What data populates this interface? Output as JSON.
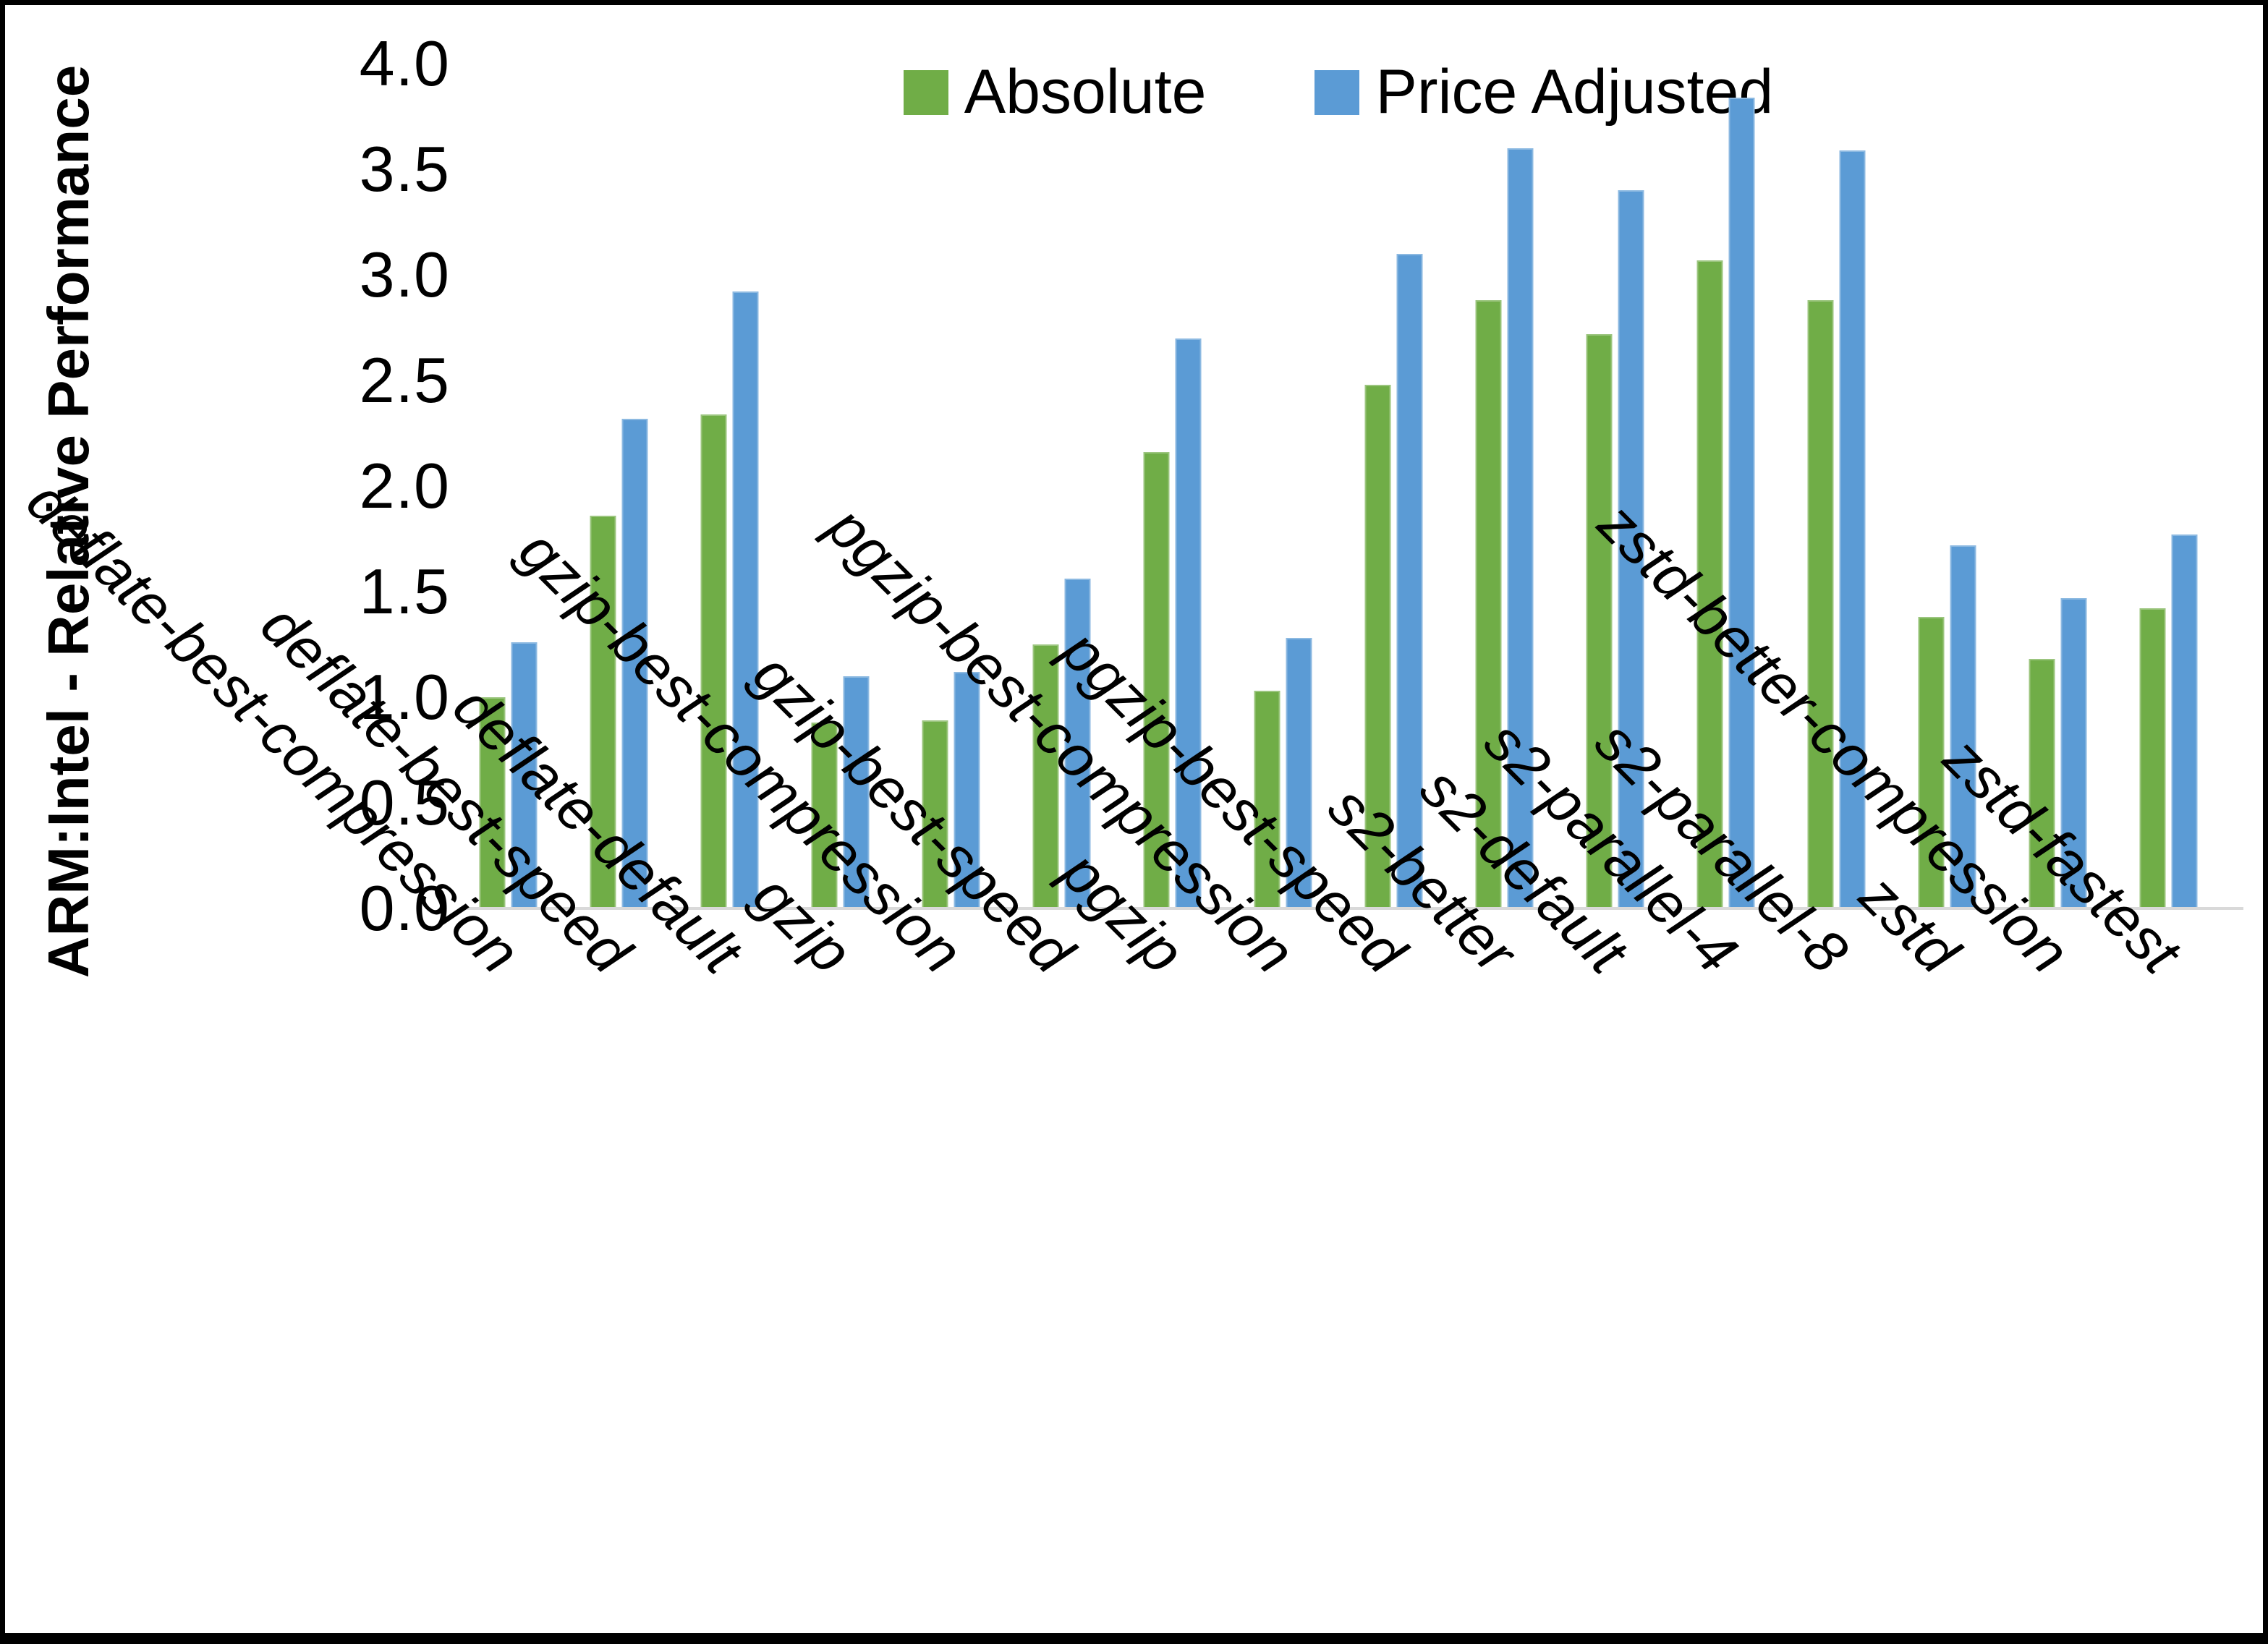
{
  "chart_data": {
    "type": "bar",
    "title": "",
    "ylabel": "ARM:Intel - Relative Performance",
    "xlabel": "",
    "ylim": [
      0.0,
      4.0
    ],
    "ytick_step": 0.5,
    "yticks": [
      "0.0",
      "0.5",
      "1.0",
      "1.5",
      "2.0",
      "2.5",
      "3.0",
      "3.5",
      "4.0"
    ],
    "grid": false,
    "legend_position": "top-center",
    "categories": [
      "deflate-best-compression",
      "deflate-best-speed",
      "deflate-default",
      "gzip",
      "gzip-best-compression",
      "gzip-best-speed",
      "pgzip",
      "pgzip-best-compression",
      "pgzip-best-speed",
      "s2-better",
      "s2-default",
      "s2-parallel-4",
      "s2-parallel-8",
      "zstd",
      "zstd-better-compression",
      "zstd-fastest"
    ],
    "series": [
      {
        "name": "Absolute",
        "color": "#70AD47",
        "values": [
          1.0,
          1.86,
          2.34,
          0.88,
          0.89,
          1.25,
          2.16,
          1.03,
          2.48,
          2.88,
          2.72,
          3.07,
          2.88,
          1.38,
          1.18,
          1.42
        ]
      },
      {
        "name": "Price Adjusted",
        "color": "#5B9BD5",
        "values": [
          1.26,
          2.32,
          2.92,
          1.1,
          1.12,
          1.56,
          2.7,
          1.28,
          3.1,
          3.6,
          3.4,
          3.84,
          3.59,
          1.72,
          1.47,
          1.77
        ]
      }
    ]
  },
  "colors": {
    "axis_line": "#d9d9d9",
    "text": "#000000",
    "background": "#ffffff",
    "frame_border": "#000000"
  }
}
